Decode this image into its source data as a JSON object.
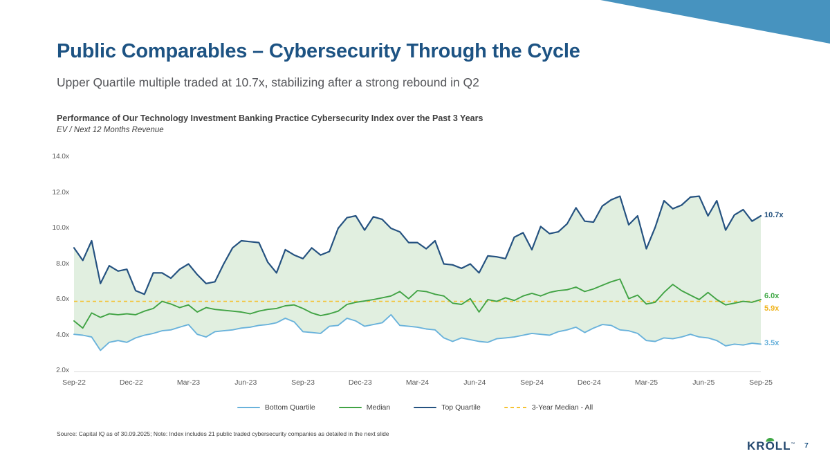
{
  "slide": {
    "title": "Public Comparables – Cybersecurity Through the Cycle",
    "subtitle": "Upper Quartile multiple traded at 10.7x, stabilizing after a strong rebound in Q2",
    "source_note": "Source: Capital IQ as of 30.09.2025; Note: Index includes 21 public traded cybersecurity companies as detailed in the next slide",
    "logo_text": "KROLL",
    "logo_mark": "™",
    "page_number": "7",
    "accent_color": "#4793bf"
  },
  "chart": {
    "title": "Performance of Our Technology Investment Banking Practice Cybersecurity Index over the Past 3 Years",
    "subtitle": "EV / Next 12 Months Revenue",
    "end_labels": [
      {
        "text": "10.7x",
        "value": 10.7,
        "color": "#24527e"
      },
      {
        "text": "6.0x",
        "value": 6.0,
        "color": "#3fa845"
      },
      {
        "text": "5.9x",
        "value": 5.9,
        "color": "#f0b41e"
      },
      {
        "text": "3.5x",
        "value": 3.5,
        "color": "#64afda"
      }
    ]
  },
  "chart_data": {
    "type": "line",
    "title": "Performance of Our Technology Investment Banking Practice Cybersecurity Index over the Past 3 Years",
    "ylabel": "EV / Next 12 Months Revenue",
    "ylim": [
      2,
      14
    ],
    "grid": false,
    "legend_position": "bottom",
    "x_range": [
      "Sep-22",
      "Sep-25"
    ],
    "x_tick_labels": [
      "Sep-22",
      "Dec-22",
      "Mar-23",
      "Jun-23",
      "Sep-23",
      "Dec-23",
      "Mar-24",
      "Jun-24",
      "Sep-24",
      "Dec-24",
      "Mar-25",
      "Jun-25",
      "Sep-25"
    ],
    "yticks": [
      {
        "label": "14.0x",
        "value": 14
      },
      {
        "label": "12.0x",
        "value": 12
      },
      {
        "label": "10.0x",
        "value": 10
      },
      {
        "label": "8.0x",
        "value": 8
      },
      {
        "label": "6.0x",
        "value": 6
      },
      {
        "label": "4.0x",
        "value": 4
      },
      {
        "label": "2.0x",
        "value": 2
      }
    ],
    "fill_between": {
      "upper": "Top Quartile",
      "lower": "Bottom Quartile",
      "color": "#e1efe0"
    },
    "series": [
      {
        "name": "Bottom Quartile",
        "color": "#69b2db",
        "values": [
          4.05,
          4.0,
          3.9,
          3.15,
          3.6,
          3.7,
          3.6,
          3.85,
          4.0,
          4.1,
          4.25,
          4.3,
          4.45,
          4.6,
          4.05,
          3.9,
          4.2,
          4.25,
          4.3,
          4.4,
          4.45,
          4.55,
          4.6,
          4.7,
          4.95,
          4.75,
          4.2,
          4.15,
          4.1,
          4.5,
          4.55,
          4.95,
          4.8,
          4.5,
          4.6,
          4.7,
          5.15,
          4.55,
          4.5,
          4.45,
          4.35,
          4.3,
          3.85,
          3.65,
          3.85,
          3.75,
          3.65,
          3.6,
          3.8,
          3.85,
          3.9,
          4.0,
          4.1,
          4.05,
          4.0,
          4.2,
          4.3,
          4.45,
          4.15,
          4.4,
          4.6,
          4.55,
          4.3,
          4.25,
          4.1,
          3.7,
          3.65,
          3.85,
          3.8,
          3.9,
          4.05,
          3.9,
          3.85,
          3.7,
          3.4,
          3.5,
          3.45,
          3.55,
          3.5
        ]
      },
      {
        "name": "Median",
        "color": "#41a344",
        "values": [
          4.8,
          4.4,
          5.25,
          5.0,
          5.2,
          5.15,
          5.2,
          5.15,
          5.35,
          5.5,
          5.9,
          5.75,
          5.55,
          5.7,
          5.3,
          5.55,
          5.45,
          5.4,
          5.35,
          5.3,
          5.2,
          5.35,
          5.45,
          5.5,
          5.65,
          5.7,
          5.5,
          5.25,
          5.1,
          5.2,
          5.35,
          5.73,
          5.85,
          5.92,
          6.0,
          6.1,
          6.2,
          6.45,
          6.05,
          6.5,
          6.45,
          6.3,
          6.2,
          5.8,
          5.73,
          6.05,
          5.3,
          6.0,
          5.9,
          6.1,
          5.95,
          6.2,
          6.35,
          6.2,
          6.4,
          6.5,
          6.55,
          6.7,
          6.45,
          6.6,
          6.8,
          7.0,
          7.15,
          6.05,
          6.25,
          5.75,
          5.85,
          6.4,
          6.85,
          6.5,
          6.25,
          6.0,
          6.4,
          6.0,
          5.7,
          5.8,
          5.9,
          5.85,
          6.0
        ]
      },
      {
        "name": "Top Quartile",
        "color": "#255280",
        "values": [
          8.9,
          8.2,
          9.3,
          6.9,
          7.9,
          7.6,
          7.7,
          6.5,
          6.3,
          7.5,
          7.5,
          7.2,
          7.7,
          8.0,
          7.4,
          6.9,
          7.0,
          8.0,
          8.9,
          9.3,
          9.25,
          9.2,
          8.1,
          7.5,
          8.8,
          8.5,
          8.3,
          8.9,
          8.5,
          8.7,
          10.0,
          10.6,
          10.7,
          9.9,
          10.65,
          10.5,
          10.0,
          9.8,
          9.2,
          9.2,
          8.85,
          9.3,
          8.0,
          7.95,
          7.75,
          8.0,
          7.5,
          8.45,
          8.4,
          8.3,
          9.5,
          9.75,
          8.8,
          10.1,
          9.7,
          9.8,
          10.25,
          11.15,
          10.4,
          10.35,
          11.25,
          11.6,
          11.8,
          10.2,
          10.7,
          8.85,
          10.05,
          11.55,
          11.1,
          11.3,
          11.75,
          11.8,
          10.7,
          11.55,
          9.9,
          10.75,
          11.05,
          10.4,
          10.7
        ]
      },
      {
        "name": "3-Year Median - All",
        "color": "#f5c232",
        "dashed": true,
        "constant": 5.9
      }
    ]
  }
}
